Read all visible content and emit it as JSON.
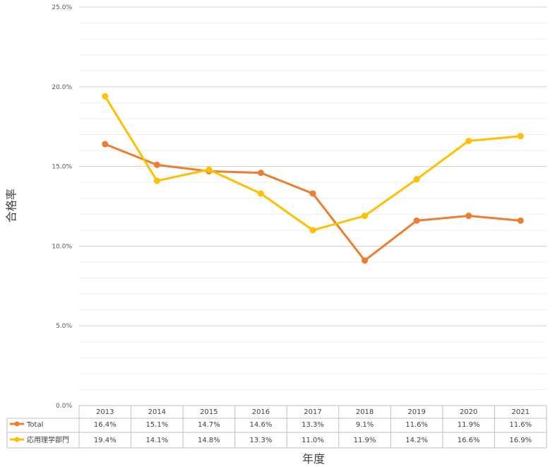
{
  "chart_data": {
    "type": "line",
    "categories": [
      "2013",
      "2014",
      "2015",
      "2016",
      "2017",
      "2018",
      "2019",
      "2020",
      "2021"
    ],
    "series": [
      {
        "name": "Total",
        "values": [
          16.4,
          15.1,
          14.7,
          14.6,
          13.3,
          9.1,
          11.6,
          11.9,
          11.6
        ],
        "labels": [
          "16.4%",
          "15.1%",
          "14.7%",
          "14.6%",
          "13.3%",
          "9.1%",
          "11.6%",
          "11.9%",
          "11.6%"
        ],
        "color": "#ED7D31"
      },
      {
        "name": "応用理学部門",
        "values": [
          19.4,
          14.1,
          14.8,
          13.3,
          11.0,
          11.9,
          14.2,
          16.6,
          16.9
        ],
        "labels": [
          "19.4%",
          "14.1%",
          "14.8%",
          "13.3%",
          "11.0%",
          "11.9%",
          "14.2%",
          "16.6%",
          "16.9%"
        ],
        "color": "#FFC000"
      }
    ],
    "ylim": [
      0,
      25
    ],
    "yticks": [
      0,
      5,
      10,
      15,
      20,
      25
    ],
    "ytick_labels": [
      "0.0%",
      "5.0%",
      "10.0%",
      "15.0%",
      "20.0%",
      "25.0%"
    ],
    "xlabel": "年度",
    "ylabel": "合格率",
    "grid": true,
    "data_table": true
  }
}
